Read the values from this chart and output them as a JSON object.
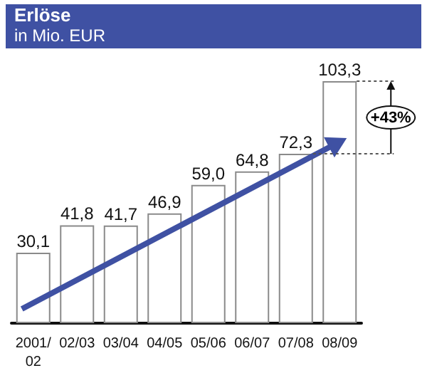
{
  "chart_data": {
    "type": "bar",
    "title": "Erlöse",
    "subtitle": "in Mio. EUR",
    "categories": [
      "2001/02",
      "02/03",
      "03/04",
      "04/05",
      "05/06",
      "06/07",
      "07/08",
      "08/09"
    ],
    "values": [
      30.1,
      41.8,
      41.7,
      46.9,
      59.0,
      64.8,
      72.3,
      103.3
    ],
    "value_labels": [
      "30,1",
      "41,8",
      "41,7",
      "46,9",
      "59,0",
      "64,8",
      "72,3",
      "103,3"
    ],
    "color": "#ffffff",
    "annotations": [
      "+43%"
    ]
  }
}
